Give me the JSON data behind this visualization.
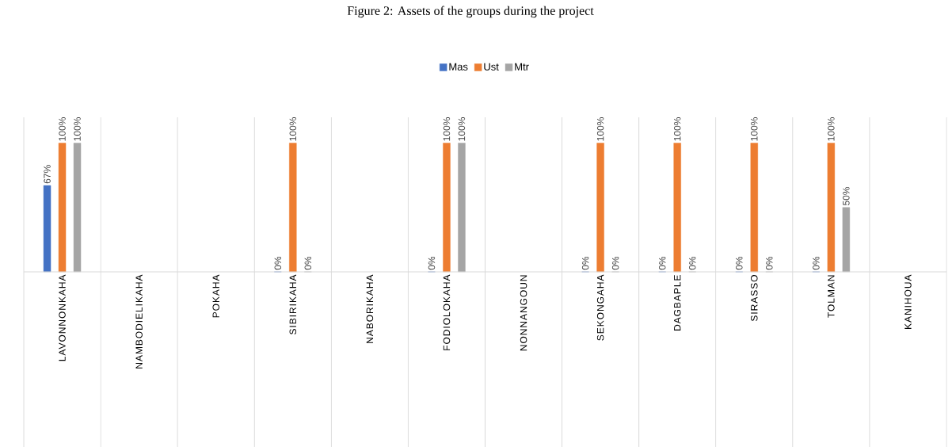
{
  "chart_data": {
    "type": "bar",
    "title": "Figure 2: Assets of the groups during the project",
    "categories": [
      "LAVONNONKAHA",
      "NAMBODIELIKAHA",
      "POKAHA",
      "SIBIRIKAHA",
      "NABORIKAHA",
      "FODIOLOKAHA",
      "NONNANGOUN",
      "SEKONGAHA",
      "DAGBAPLE",
      "SIRASSO",
      "TOLMAN",
      "KANIHOUA"
    ],
    "series": [
      {
        "name": "Mas",
        "color": "#4472c4",
        "values": [
          67,
          null,
          null,
          0,
          null,
          0,
          null,
          0,
          0,
          0,
          0,
          null
        ],
        "value_labels": [
          "67%",
          null,
          null,
          "0%",
          null,
          "0%",
          null,
          "0%",
          "0%",
          "0%",
          "0%",
          null
        ]
      },
      {
        "name": "Ust",
        "color": "#ed7d31",
        "values": [
          100,
          null,
          null,
          100,
          null,
          100,
          null,
          100,
          100,
          100,
          100,
          null
        ],
        "value_labels": [
          "100%",
          null,
          null,
          "100%",
          null,
          "100%",
          null,
          "100%",
          "100%",
          "100%",
          "100%",
          null
        ]
      },
      {
        "name": "Mtr",
        "color": "#a5a5a5",
        "values": [
          100,
          null,
          null,
          0,
          null,
          100,
          null,
          0,
          0,
          0,
          50,
          null
        ],
        "value_labels": [
          "100%",
          null,
          null,
          "0%",
          null,
          "100%",
          null,
          "0%",
          "0%",
          "0%",
          "50%",
          null
        ]
      }
    ],
    "legend": "top"
  }
}
